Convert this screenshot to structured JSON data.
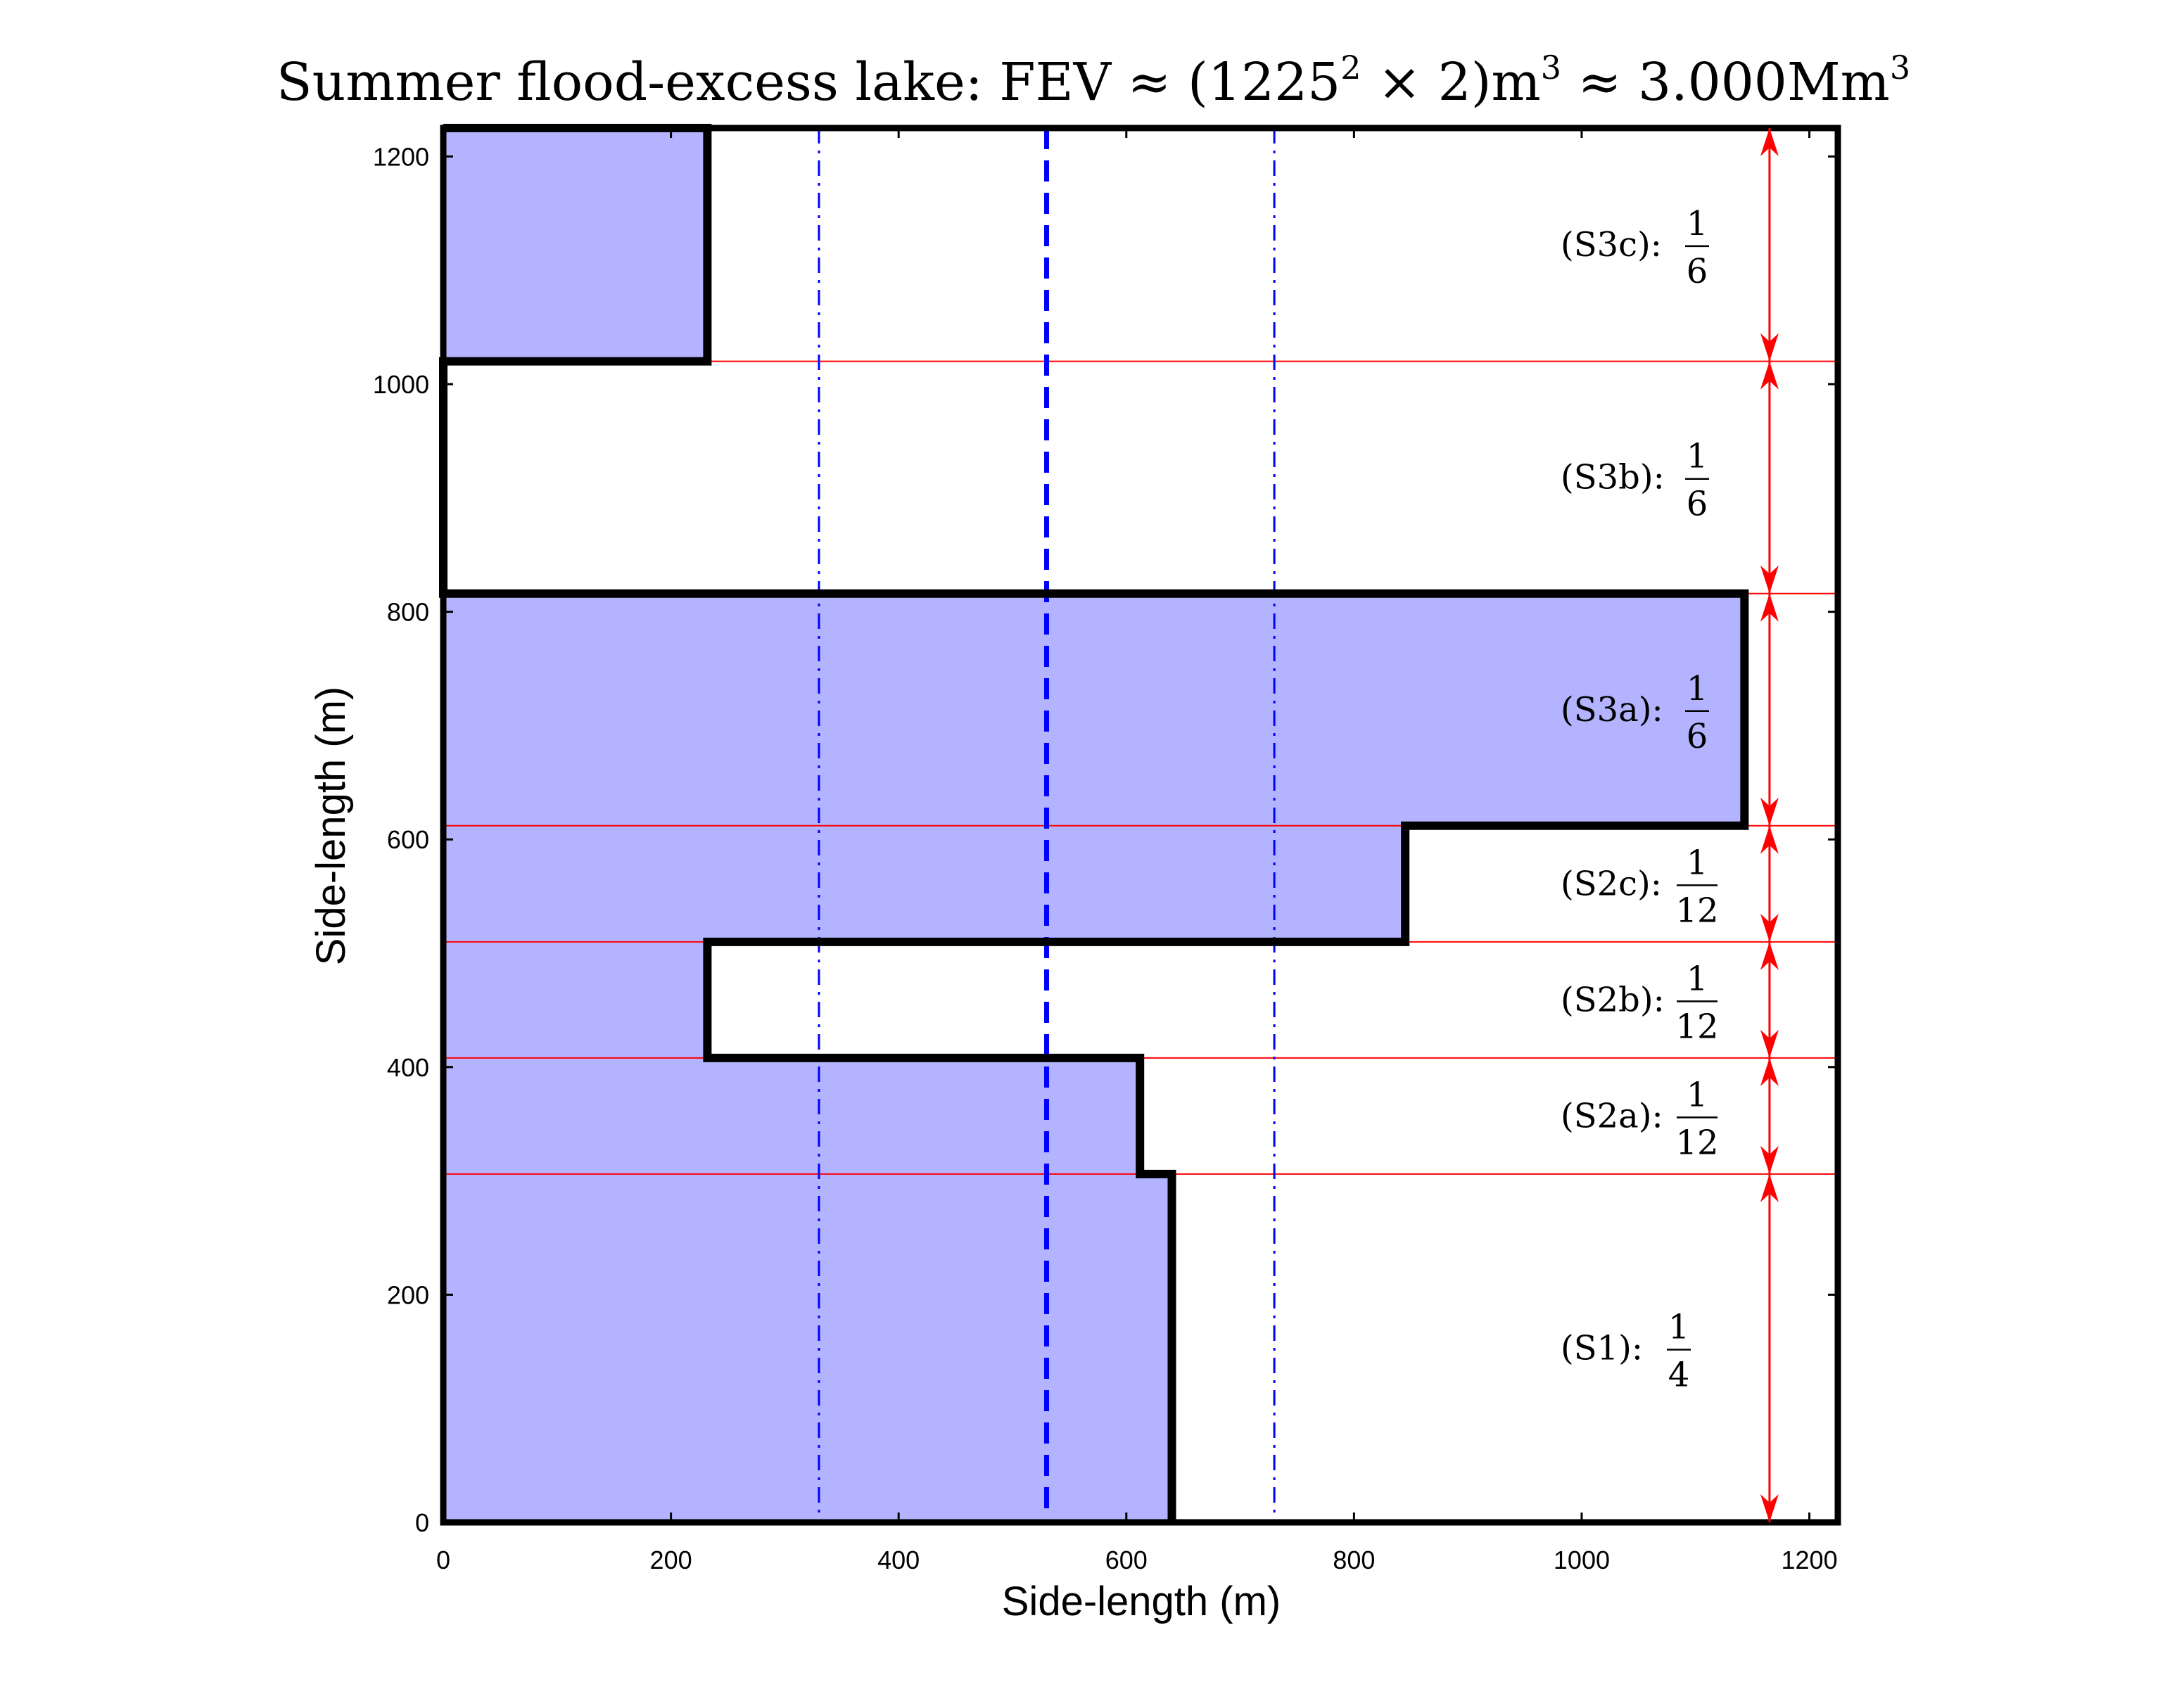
{
  "chart_data": {
    "type": "area",
    "title": {
      "prefix": "Summer flood-excess lake: FEV ≈ (1225",
      "sup1": "2",
      "mid": " × 2)m",
      "sup2": "3",
      "mid2": " ≈ 3.000Mm",
      "sup3": "3"
    },
    "xlabel": "Side-length (m)",
    "ylabel": "Side-length (m)",
    "xlim": [
      0,
      1225
    ],
    "ylim": [
      0,
      1225
    ],
    "xticks": [
      0,
      200,
      400,
      600,
      800,
      1000,
      1200
    ],
    "yticks": [
      0,
      200,
      400,
      600,
      800,
      1000,
      1200
    ],
    "fill_color": "#b3b3ff",
    "outline_color": "#000000",
    "divider_color": "#ff0000",
    "vline_color": "#0000ff",
    "arrow_color": "#ff0000",
    "polygons": [
      [
        [
          0,
          1020
        ],
        [
          232,
          1020
        ],
        [
          232,
          1225
        ],
        [
          0,
          1225
        ]
      ],
      [
        [
          0,
          0
        ],
        [
          640,
          0
        ],
        [
          640,
          306
        ],
        [
          612,
          306
        ],
        [
          612,
          408
        ],
        [
          232,
          408
        ],
        [
          232,
          510
        ],
        [
          845,
          510
        ],
        [
          845,
          612
        ],
        [
          1143,
          612
        ],
        [
          1143,
          816
        ],
        [
          0,
          816
        ]
      ]
    ],
    "outline_path": [
      [
        0,
        1225
      ],
      [
        232,
        1225
      ],
      [
        232,
        1020
      ],
      [
        0,
        1020
      ],
      [
        0,
        816
      ],
      [
        1143,
        816
      ],
      [
        1143,
        612
      ],
      [
        845,
        612
      ],
      [
        845,
        510
      ],
      [
        232,
        510
      ],
      [
        232,
        408
      ],
      [
        612,
        408
      ],
      [
        612,
        306
      ],
      [
        640,
        306
      ],
      [
        640,
        0
      ]
    ],
    "divisions_y": [
      306,
      408,
      510,
      612,
      816,
      1020
    ],
    "vlines": [
      {
        "x": 330,
        "style": "dashdot"
      },
      {
        "x": 530,
        "style": "dashed"
      },
      {
        "x": 730,
        "style": "dashdot"
      }
    ],
    "arrow_x": 1165,
    "segments": [
      {
        "label": "(S1):",
        "num": "1",
        "den": "4",
        "y0": 0,
        "y1": 306
      },
      {
        "label": "(S2a):",
        "num": "1",
        "den": "12",
        "y0": 306,
        "y1": 408
      },
      {
        "label": "(S2b):",
        "num": "1",
        "den": "12",
        "y0": 408,
        "y1": 510
      },
      {
        "label": "(S2c):",
        "num": "1",
        "den": "12",
        "y0": 510,
        "y1": 612
      },
      {
        "label": "(S3a):",
        "num": "1",
        "den": "6",
        "y0": 612,
        "y1": 816
      },
      {
        "label": "(S3b):",
        "num": "1",
        "den": "6",
        "y0": 816,
        "y1": 1020
      },
      {
        "label": "(S3c):",
        "num": "1",
        "den": "6",
        "y0": 1020,
        "y1": 1225
      }
    ]
  }
}
